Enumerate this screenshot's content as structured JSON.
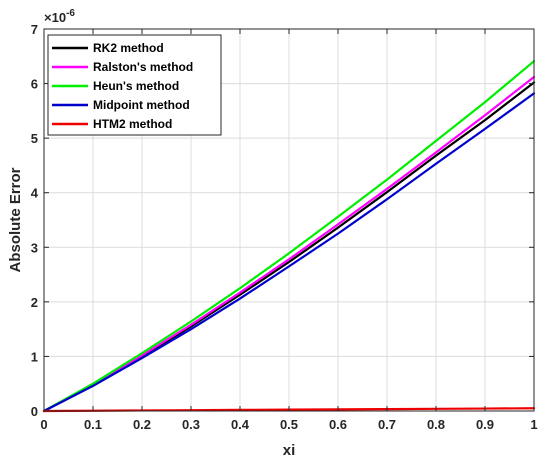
{
  "chart_data": {
    "type": "line",
    "title": "",
    "xlabel": "xi",
    "ylabel": "Absolute Error",
    "y_multiplier": "×10",
    "y_multiplier_exp": "-6",
    "xlim": [
      0,
      1
    ],
    "ylim": [
      0,
      7
    ],
    "x_ticks": [
      "0",
      "0.1",
      "0.2",
      "0.3",
      "0.4",
      "0.5",
      "0.6",
      "0.7",
      "0.8",
      "0.9",
      "1"
    ],
    "y_ticks": [
      "0",
      "1",
      "2",
      "3",
      "4",
      "5",
      "6",
      "7"
    ],
    "grid": true,
    "legend_position": "top-left",
    "x": [
      0,
      0.1,
      0.2,
      0.3,
      0.4,
      0.5,
      0.6,
      0.7,
      0.8,
      0.9,
      1.0
    ],
    "series": [
      {
        "name": "RK2 method",
        "color": "#000000",
        "values": [
          0,
          0.47,
          1.0,
          1.55,
          2.13,
          2.73,
          3.36,
          4.01,
          4.68,
          5.33,
          6.02
        ]
      },
      {
        "name": "Ralston's method",
        "color": "#ff00ff",
        "values": [
          0,
          0.48,
          1.02,
          1.58,
          2.17,
          2.78,
          3.42,
          4.07,
          4.74,
          5.42,
          6.12
        ]
      },
      {
        "name": "Heun's method",
        "color": "#00ee00",
        "values": [
          0,
          0.5,
          1.06,
          1.64,
          2.25,
          2.89,
          3.56,
          4.24,
          4.95,
          5.66,
          6.41
        ]
      },
      {
        "name": "Midpoint method",
        "color": "#0000cc",
        "values": [
          0,
          0.46,
          0.97,
          1.5,
          2.06,
          2.65,
          3.25,
          3.88,
          4.53,
          5.17,
          5.82
        ]
      },
      {
        "name": "HTM2 method",
        "color": "#ee0000",
        "values": [
          0,
          0.005,
          0.01,
          0.015,
          0.02,
          0.025,
          0.03,
          0.035,
          0.04,
          0.045,
          0.05
        ]
      }
    ]
  }
}
